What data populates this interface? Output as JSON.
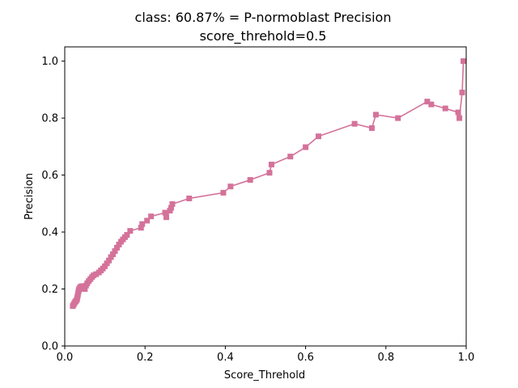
{
  "chart_data": {
    "type": "line",
    "title": "class: 60.87% = P-normoblast Precision",
    "subtitle": "score_threhold=0.5",
    "xlabel": "Score_Threhold",
    "ylabel": "Precision",
    "xlim": [
      0,
      1
    ],
    "ylim": [
      0,
      1.05
    ],
    "x_ticks": [
      0,
      0.2,
      0.4,
      0.6,
      0.8,
      1.0
    ],
    "x_tick_labels": [
      "0.0",
      "0.2",
      "0.4",
      "0.6",
      "0.8",
      "1.0"
    ],
    "y_ticks": [
      0,
      0.2,
      0.4,
      0.6,
      0.8,
      1.0
    ],
    "y_tick_labels": [
      "0.0",
      "0.2",
      "0.4",
      "0.6",
      "0.8",
      "1.0"
    ],
    "grid": false,
    "legend": "none",
    "series": [
      {
        "color": "#d4729a",
        "marker": "square",
        "points": [
          [
            0.02,
            0.14
          ],
          [
            0.022,
            0.145
          ],
          [
            0.024,
            0.15
          ],
          [
            0.026,
            0.155
          ],
          [
            0.028,
            0.158
          ],
          [
            0.03,
            0.162
          ],
          [
            0.031,
            0.168
          ],
          [
            0.032,
            0.175
          ],
          [
            0.033,
            0.182
          ],
          [
            0.034,
            0.19
          ],
          [
            0.035,
            0.196
          ],
          [
            0.036,
            0.2
          ],
          [
            0.038,
            0.205
          ],
          [
            0.04,
            0.208
          ],
          [
            0.043,
            0.21
          ],
          [
            0.046,
            0.205
          ],
          [
            0.05,
            0.2
          ],
          [
            0.053,
            0.212
          ],
          [
            0.056,
            0.22
          ],
          [
            0.06,
            0.228
          ],
          [
            0.064,
            0.235
          ],
          [
            0.068,
            0.242
          ],
          [
            0.072,
            0.248
          ],
          [
            0.078,
            0.252
          ],
          [
            0.085,
            0.258
          ],
          [
            0.09,
            0.265
          ],
          [
            0.095,
            0.272
          ],
          [
            0.1,
            0.28
          ],
          [
            0.105,
            0.29
          ],
          [
            0.11,
            0.3
          ],
          [
            0.115,
            0.312
          ],
          [
            0.12,
            0.322
          ],
          [
            0.125,
            0.333
          ],
          [
            0.13,
            0.345
          ],
          [
            0.135,
            0.356
          ],
          [
            0.14,
            0.366
          ],
          [
            0.145,
            0.374
          ],
          [
            0.15,
            0.382
          ],
          [
            0.155,
            0.39
          ],
          [
            0.163,
            0.404
          ],
          [
            0.19,
            0.415
          ],
          [
            0.193,
            0.428
          ],
          [
            0.205,
            0.44
          ],
          [
            0.215,
            0.455
          ],
          [
            0.25,
            0.468
          ],
          [
            0.253,
            0.452
          ],
          [
            0.262,
            0.475
          ],
          [
            0.265,
            0.485
          ],
          [
            0.268,
            0.498
          ],
          [
            0.31,
            0.518
          ],
          [
            0.395,
            0.538
          ],
          [
            0.413,
            0.56
          ],
          [
            0.462,
            0.583
          ],
          [
            0.51,
            0.608
          ],
          [
            0.515,
            0.637
          ],
          [
            0.562,
            0.665
          ],
          [
            0.6,
            0.698
          ],
          [
            0.632,
            0.736
          ],
          [
            0.722,
            0.78
          ],
          [
            0.765,
            0.765
          ],
          [
            0.775,
            0.812
          ],
          [
            0.83,
            0.8
          ],
          [
            0.903,
            0.858
          ],
          [
            0.913,
            0.848
          ],
          [
            0.948,
            0.834
          ],
          [
            0.98,
            0.82
          ],
          [
            0.983,
            0.8
          ],
          [
            0.99,
            0.89
          ],
          [
            0.993,
            1.0
          ]
        ]
      }
    ]
  }
}
